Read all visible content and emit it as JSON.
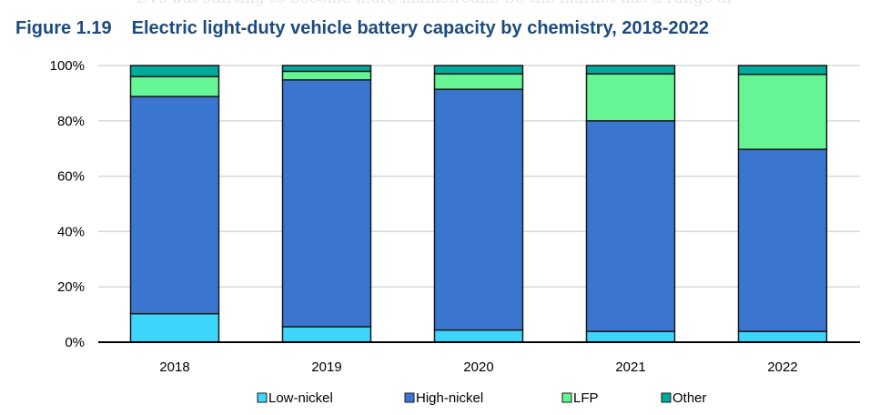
{
  "background_text": "EVs but starting to become more mainstream. So the market has a range of",
  "figure": {
    "number": "Figure 1.19",
    "title": "Electric light-duty vehicle battery capacity by chemistry, 2018-2022"
  },
  "chart_data": {
    "type": "bar",
    "stacked": true,
    "title": "Electric light-duty vehicle battery capacity by chemistry, 2018-2022",
    "categories": [
      "2018",
      "2019",
      "2020",
      "2021",
      "2022"
    ],
    "series": [
      {
        "name": "Low-nickel",
        "color": "#3dd5fa",
        "values": [
          10.3,
          5.6,
          4.4,
          3.9,
          3.9
        ]
      },
      {
        "name": "High-nickel",
        "color": "#3a75d0",
        "values": [
          78.5,
          89.2,
          87.0,
          76.1,
          65.8
        ]
      },
      {
        "name": "LFP",
        "color": "#66f594",
        "values": [
          7.2,
          3.1,
          5.6,
          17.0,
          27.1
        ]
      },
      {
        "name": "Other",
        "color": "#00a99a",
        "values": [
          4.0,
          2.1,
          3.0,
          3.0,
          3.2
        ]
      }
    ],
    "yticks": [
      "0%",
      "20%",
      "40%",
      "60%",
      "80%",
      "100%"
    ],
    "ylim": [
      0,
      100
    ],
    "grid": true,
    "legend": "bottom",
    "xlabel": "",
    "ylabel": ""
  }
}
